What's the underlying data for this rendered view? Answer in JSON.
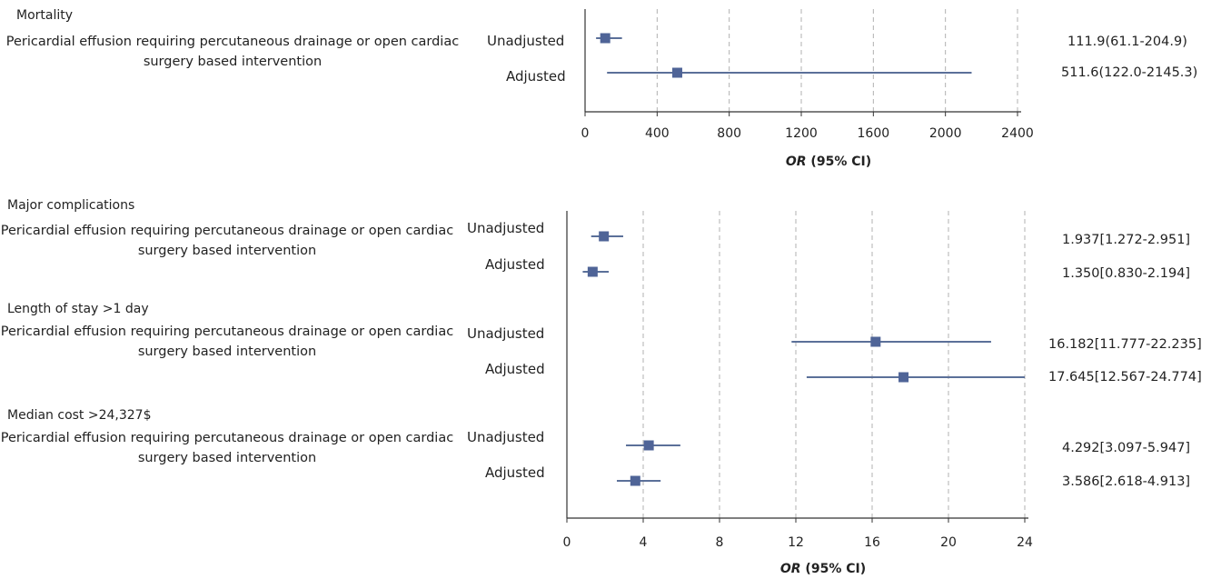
{
  "chart_data": [
    {
      "type": "forest",
      "xlabel_italic": "OR",
      "xlabel_rest": " (95% CI)",
      "xlim": [
        0,
        2400
      ],
      "xticks": [
        0,
        400,
        800,
        1200,
        1600,
        2000,
        2400
      ],
      "groups": [
        {
          "title": "Mortality",
          "description": "Pericardial effusion requiring percutaneous drainage or open cardiac surgery based intervention",
          "rows": [
            {
              "label": "Unadjusted",
              "or": 111.9,
              "low": 61.1,
              "high": 204.9,
              "text": "111.9(61.1-204.9)"
            },
            {
              "label": "Adjusted",
              "or": 511.6,
              "low": 122.0,
              "high": 2145.3,
              "text": "511.6(122.0-2145.3)"
            }
          ]
        }
      ]
    },
    {
      "type": "forest",
      "xlabel_italic": "OR",
      "xlabel_rest": " (95% CI)",
      "xlim": [
        0,
        24
      ],
      "xticks": [
        0,
        4,
        8,
        12,
        16,
        20,
        24
      ],
      "groups": [
        {
          "title": "Major complications",
          "description": "Pericardial effusion requiring percutaneous drainage or open cardiac surgery based intervention",
          "rows": [
            {
              "label": "Unadjusted",
              "or": 1.937,
              "low": 1.272,
              "high": 2.951,
              "text": "1.937[1.272-2.951]"
            },
            {
              "label": "Adjusted",
              "or": 1.35,
              "low": 0.83,
              "high": 2.194,
              "text": "1.350[0.830-2.194]"
            }
          ]
        },
        {
          "title": "Length  of stay >1 day",
          "description": "Pericardial effusion requiring percutaneous drainage or open cardiac surgery based intervention",
          "rows": [
            {
              "label": "Unadjusted",
              "or": 16.182,
              "low": 11.777,
              "high": 22.235,
              "text": "16.182[11.777-22.235]"
            },
            {
              "label": "Adjusted",
              "or": 17.645,
              "low": 12.567,
              "high": 24.774,
              "text": "17.645[12.567-24.774]"
            }
          ]
        },
        {
          "title": "Median cost >24,327$",
          "description": "Pericardial effusion requiring percutaneous drainage or open cardiac surgery based intervention",
          "rows": [
            {
              "label": "Unadjusted",
              "or": 4.292,
              "low": 3.097,
              "high": 5.947,
              "text": "4.292[3.097-5.947]"
            },
            {
              "label": "Adjusted",
              "or": 3.586,
              "low": 2.618,
              "high": 4.913,
              "text": "3.586[2.618-4.913]"
            }
          ]
        }
      ]
    }
  ],
  "colors": {
    "marker": "#4f6497",
    "ci_line": "#5b7099",
    "axis": "#333333",
    "grid": "#b0b0b0"
  }
}
